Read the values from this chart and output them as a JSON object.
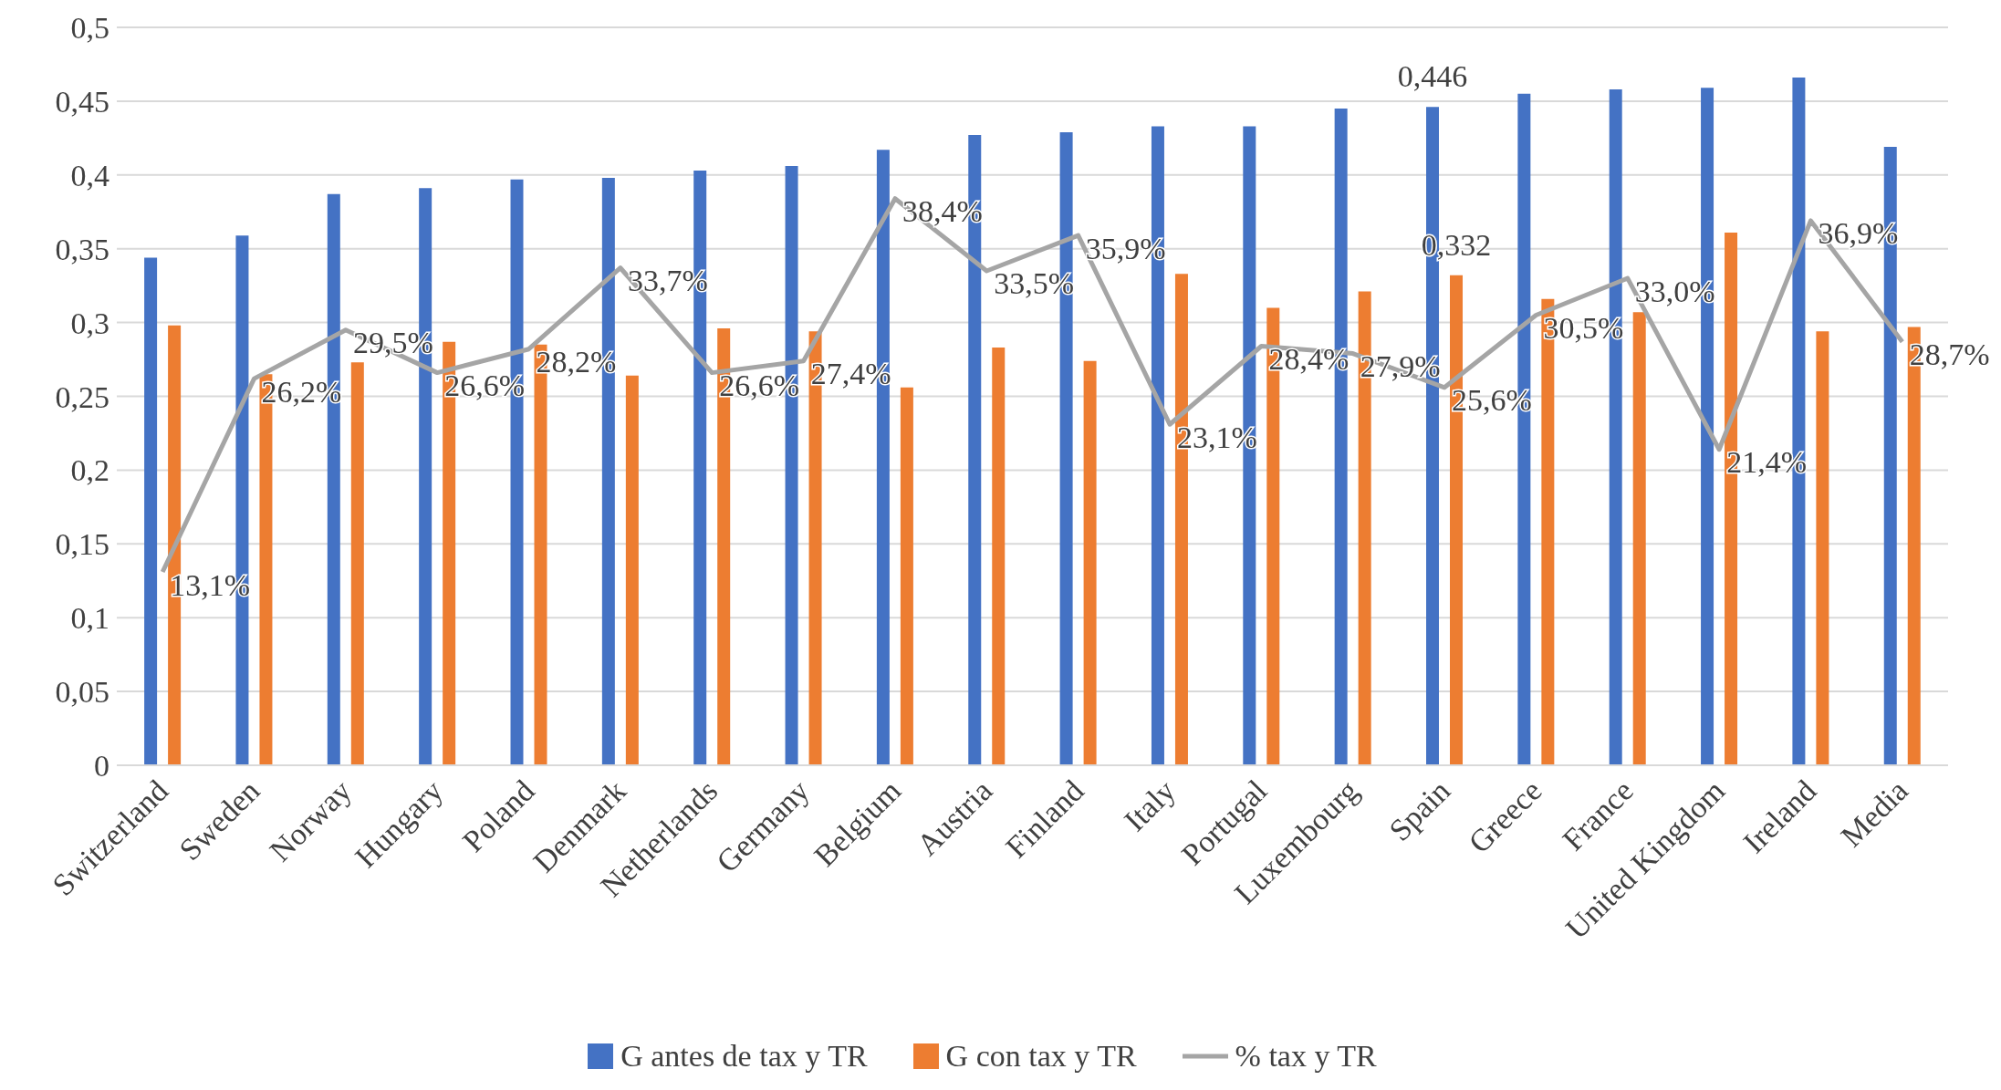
{
  "chart_data": {
    "type": "bar",
    "categories": [
      "Switzerland",
      "Sweden",
      "Norway",
      "Hungary",
      "Poland",
      "Denmark",
      "Netherlands",
      "Germany",
      "Belgium",
      "Austria",
      "Finland",
      "Italy",
      "Portugal",
      "Luxembourg",
      "Spain",
      "Greece",
      "France",
      "United Kingdom",
      "Ireland",
      "Media"
    ],
    "series": [
      {
        "name": "G antes de tax y TR",
        "color": "#4472c4",
        "values": [
          0.344,
          0.359,
          0.387,
          0.391,
          0.397,
          0.398,
          0.403,
          0.406,
          0.417,
          0.427,
          0.429,
          0.433,
          0.433,
          0.445,
          0.446,
          0.455,
          0.458,
          0.459,
          0.466,
          0.419
        ],
        "value_labels": [
          null,
          null,
          null,
          null,
          null,
          null,
          null,
          null,
          null,
          null,
          null,
          null,
          null,
          null,
          "0,446",
          null,
          null,
          null,
          null,
          null
        ]
      },
      {
        "name": "G con tax y TR",
        "color": "#ed7d31",
        "values": [
          0.298,
          0.265,
          0.273,
          0.287,
          0.285,
          0.264,
          0.296,
          0.294,
          0.256,
          0.283,
          0.274,
          0.333,
          0.31,
          0.321,
          0.332,
          0.316,
          0.307,
          0.361,
          0.294,
          0.297
        ],
        "value_labels": [
          null,
          null,
          null,
          null,
          null,
          null,
          null,
          null,
          null,
          null,
          null,
          null,
          null,
          null,
          "0,332",
          null,
          null,
          null,
          null,
          null
        ]
      },
      {
        "name": "% tax y TR",
        "type": "line",
        "color": "#a5a5a5",
        "values": [
          0.131,
          0.262,
          0.295,
          0.266,
          0.282,
          0.337,
          0.266,
          0.274,
          0.384,
          0.335,
          0.359,
          0.231,
          0.284,
          0.279,
          0.256,
          0.305,
          0.33,
          0.214,
          0.369,
          0.287
        ],
        "value_labels": [
          "13,1%",
          "26,2%",
          "29,5%",
          "26,6%",
          "28,2%",
          "33,7%",
          "26,6%",
          "27,4%",
          "38,4%",
          "33,5%",
          "35,9%",
          "23,1%",
          "28,4%",
          "27,9%",
          "25,6%",
          "30,5%",
          "33,0%",
          "21,4%",
          "36,9%",
          "28,7%"
        ]
      }
    ],
    "ylim": [
      0,
      0.5
    ],
    "yticks": [
      {
        "value": 0,
        "label": "0"
      },
      {
        "value": 0.05,
        "label": "0,05"
      },
      {
        "value": 0.1,
        "label": "0,1"
      },
      {
        "value": 0.15,
        "label": "0,15"
      },
      {
        "value": 0.2,
        "label": "0,2"
      },
      {
        "value": 0.25,
        "label": "0,25"
      },
      {
        "value": 0.3,
        "label": "0,3"
      },
      {
        "value": 0.35,
        "label": "0,35"
      },
      {
        "value": 0.4,
        "label": "0,4"
      },
      {
        "value": 0.45,
        "label": "0,45"
      },
      {
        "value": 0.5,
        "label": "0,5"
      }
    ],
    "grid": "y",
    "legend": "bottom",
    "marker": "none"
  }
}
